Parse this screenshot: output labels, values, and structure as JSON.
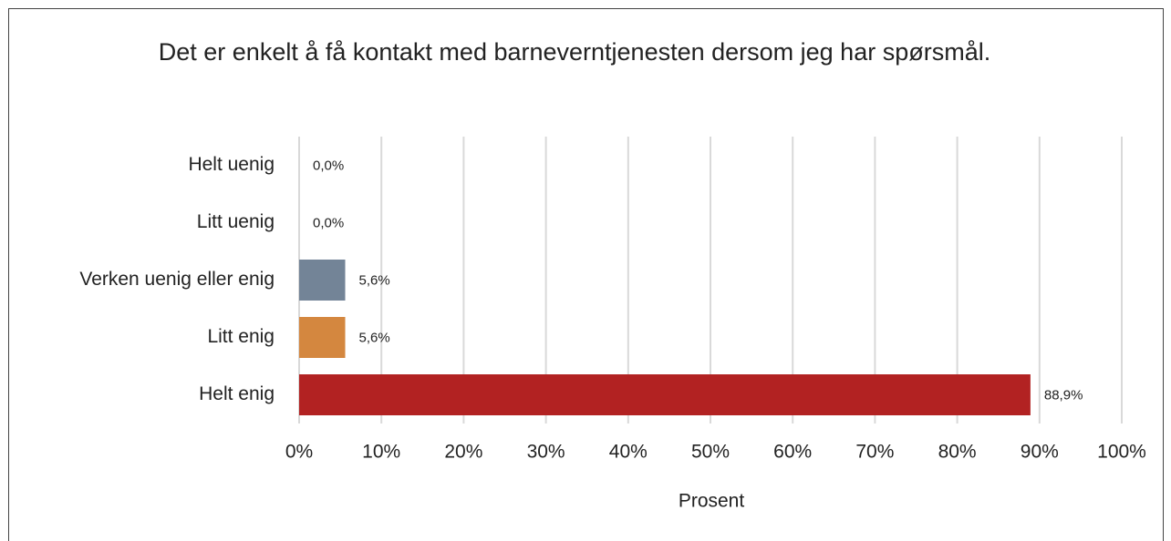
{
  "chart_data": {
    "type": "barh",
    "title": "Det er enkelt å få kontakt med barneverntjenesten dersom jeg har spørsmål.",
    "xlabel": "Prosent",
    "categories": [
      "Helt uenig",
      "Litt uenig",
      "Verken uenig eller enig",
      "Litt enig",
      "Helt enig"
    ],
    "values": [
      0,
      0,
      5.6,
      5.6,
      88.9
    ],
    "value_labels": [
      "0,0%",
      "0,0%",
      "5,6%",
      "5,6%",
      "88,9%"
    ],
    "colors": [
      "#8b1a1a",
      "#c0504d",
      "#738497",
      "#d4873f",
      "#b22222"
    ],
    "xlim": [
      0,
      100
    ],
    "xticks": [
      {
        "value": 0,
        "label": "0%"
      },
      {
        "value": 10,
        "label": "10%"
      },
      {
        "value": 20,
        "label": "20%"
      },
      {
        "value": 30,
        "label": "30%"
      },
      {
        "value": 40,
        "label": "40%"
      },
      {
        "value": 50,
        "label": "50%"
      },
      {
        "value": 60,
        "label": "60%"
      },
      {
        "value": 70,
        "label": "70%"
      },
      {
        "value": 80,
        "label": "80%"
      },
      {
        "value": 90,
        "label": "90%"
      },
      {
        "value": 100,
        "label": "100%"
      }
    ],
    "grid": true
  }
}
